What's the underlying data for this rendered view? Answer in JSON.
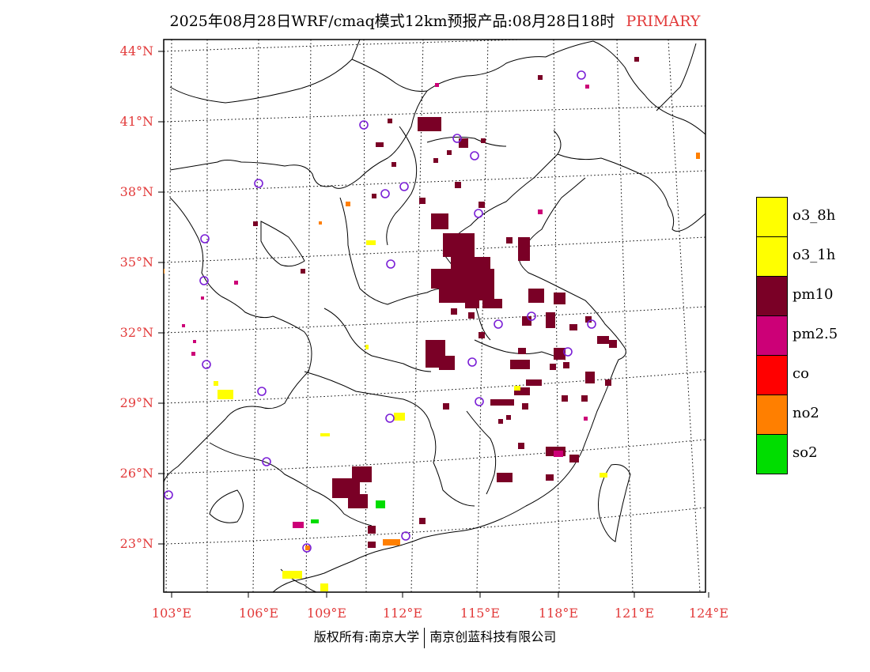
{
  "title": {
    "main": "2025年08月28日WRF/cmaq模式12km预报产品:08月28日18时",
    "tag": "PRIMARY"
  },
  "axes": {
    "lat_labels": [
      "44°N",
      "41°N",
      "38°N",
      "35°N",
      "32°N",
      "29°N",
      "26°N",
      "23°N"
    ],
    "lon_labels": [
      "103°E",
      "106°E",
      "109°E",
      "112°E",
      "115°E",
      "118°E",
      "121°E",
      "124°E"
    ]
  },
  "legend": {
    "items": [
      {
        "label": "o3_8h",
        "color": "#ffff00"
      },
      {
        "label": "o3_1h",
        "color": "#ffff00"
      },
      {
        "label": "pm10",
        "color": "#7a0026"
      },
      {
        "label": "pm2.5",
        "color": "#cc0077"
      },
      {
        "label": "co",
        "color": "#ff0000"
      },
      {
        "label": "no2",
        "color": "#ff7f00"
      },
      {
        "label": "so2",
        "color": "#00dd00"
      }
    ]
  },
  "footer": {
    "left": "版权所有:南京大学",
    "right": "南京创蓝科技有限公司"
  },
  "colors": {
    "axis_label": "#e23a3a",
    "station_marker": "#7a1fd6",
    "pm10": "#7a0026",
    "pm25": "#cc0077",
    "o3": "#ffff00",
    "no2": "#ff7f00",
    "so2": "#00dd00"
  }
}
